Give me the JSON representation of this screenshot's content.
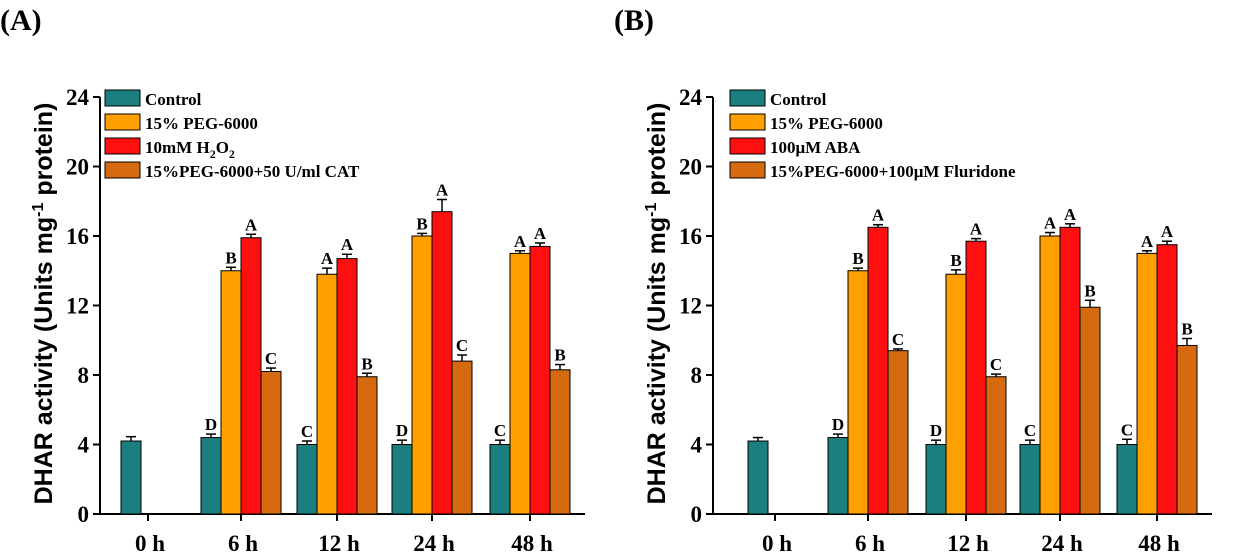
{
  "chart_data": [
    {
      "type": "bar",
      "panel_label": "(A)",
      "ylabel_main": "DHAR activity (Units mg",
      "ylabel_sup": "-1",
      "ylabel_end": " protein)",
      "ylim": [
        0,
        24
      ],
      "yticks": [
        "0",
        "4",
        "8",
        "12",
        "16",
        "20",
        "24"
      ],
      "categories": [
        "0 h",
        "6 h",
        "12 h",
        "24 h",
        "48 h"
      ],
      "legend_position": "top-left",
      "series": [
        {
          "name": "Control",
          "color": "#1b7f7f",
          "values": [
            4.2,
            4.4,
            4.0,
            4.0,
            4.0
          ],
          "errors": [
            0.25,
            0.2,
            0.2,
            0.25,
            0.25
          ],
          "letters": [
            "",
            "D",
            "C",
            "D",
            "C"
          ]
        },
        {
          "name": "15% PEG-6000",
          "color": "#ffa000",
          "values": [
            null,
            14.0,
            13.8,
            16.0,
            15.0
          ],
          "errors": [
            null,
            0.2,
            0.35,
            0.15,
            0.15
          ],
          "letters": [
            "",
            "B",
            "A",
            "B",
            "A"
          ]
        },
        {
          "name": "10mM H2O2",
          "label_main": "10mM H",
          "label_sub1": "2",
          "label_mid": "O",
          "label_sub2": "2",
          "color": "#ff1010",
          "values": [
            null,
            15.9,
            14.7,
            17.4,
            15.4
          ],
          "errors": [
            null,
            0.2,
            0.25,
            0.7,
            0.2
          ],
          "letters": [
            "",
            "A",
            "A",
            "A",
            "A"
          ]
        },
        {
          "name": "15%PEG-6000+50 U/ml CAT",
          "color": "#d66a10",
          "values": [
            null,
            8.2,
            7.9,
            8.8,
            8.3
          ],
          "errors": [
            null,
            0.2,
            0.2,
            0.35,
            0.3
          ],
          "letters": [
            "",
            "C",
            "B",
            "C",
            "B"
          ]
        }
      ]
    },
    {
      "type": "bar",
      "panel_label": "(B)",
      "ylabel_main": "DHAR activity (Units mg",
      "ylabel_sup": "-1",
      "ylabel_end": " protein)",
      "ylim": [
        0,
        24
      ],
      "yticks": [
        "0",
        "4",
        "8",
        "12",
        "16",
        "20",
        "24"
      ],
      "categories": [
        "0 h",
        "6 h",
        "12 h",
        "24 h",
        "48 h"
      ],
      "legend_position": "top-left",
      "series": [
        {
          "name": "Control",
          "color": "#1b7f7f",
          "values": [
            4.2,
            4.4,
            4.0,
            4.0,
            4.0
          ],
          "errors": [
            0.2,
            0.2,
            0.25,
            0.25,
            0.3
          ],
          "letters": [
            "",
            "D",
            "D",
            "C",
            "C"
          ]
        },
        {
          "name": "15% PEG-6000",
          "color": "#ffa000",
          "values": [
            null,
            14.0,
            13.8,
            16.0,
            15.0
          ],
          "errors": [
            null,
            0.15,
            0.25,
            0.2,
            0.15
          ],
          "letters": [
            "",
            "B",
            "B",
            "A",
            "A"
          ]
        },
        {
          "name": "100μM ABA",
          "color": "#ff1010",
          "values": [
            null,
            16.5,
            15.7,
            16.5,
            15.5
          ],
          "errors": [
            null,
            0.15,
            0.15,
            0.2,
            0.2
          ],
          "letters": [
            "",
            "A",
            "A",
            "A",
            "A"
          ]
        },
        {
          "name": "15%PEG-6000+100μM Fluridone",
          "color": "#d66a10",
          "values": [
            null,
            9.4,
            7.9,
            11.9,
            9.7
          ],
          "errors": [
            null,
            0.1,
            0.15,
            0.4,
            0.4
          ],
          "letters": [
            "",
            "C",
            "C",
            "B",
            "B"
          ]
        }
      ]
    }
  ]
}
